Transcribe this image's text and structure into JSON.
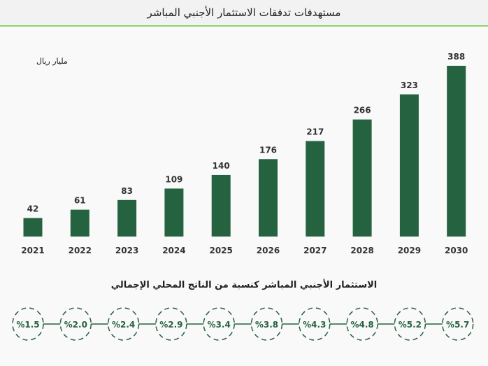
{
  "header": {
    "title": "مستهدفات تدفقات الاستثمار الأجنبي المباشر"
  },
  "chart_data": {
    "type": "bar",
    "title": "مستهدفات تدفقات الاستثمار الأجنبي المباشر",
    "ylabel": "مليار ريال",
    "categories": [
      "2021",
      "2022",
      "2023",
      "2024",
      "2025",
      "2026",
      "2027",
      "2028",
      "2029",
      "2030"
    ],
    "values": [
      42,
      61,
      83,
      109,
      140,
      176,
      217,
      266,
      323,
      388
    ],
    "ylim": [
      0,
      400
    ],
    "grid": false,
    "bar_color": "#256240"
  },
  "gdp_share": {
    "title": "الاستثمار الأجنبي المباشر كنسبة من الناتج المحلي الإجمالي",
    "values": [
      "%1.5",
      "%2.0",
      "%2.4",
      "%2.9",
      "%3.4",
      "%3.8",
      "%4.3",
      "%4.8",
      "%5.2",
      "%5.7"
    ]
  }
}
